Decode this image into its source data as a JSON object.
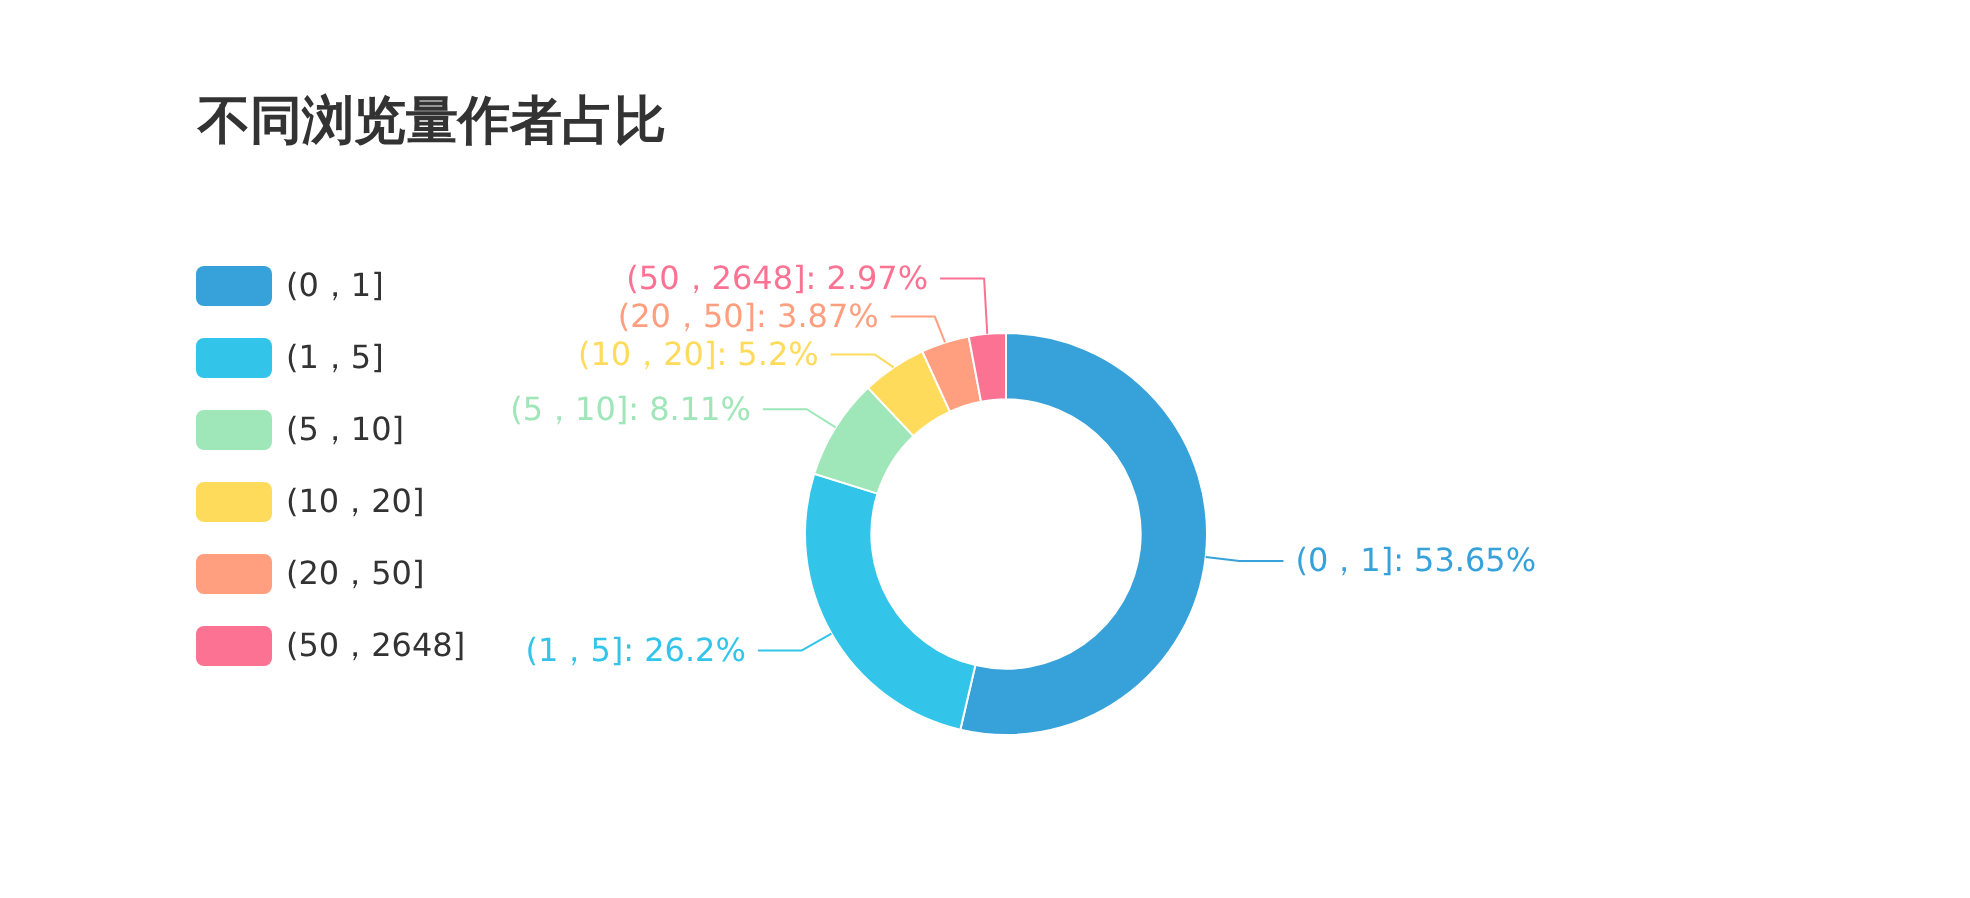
{
  "chart_data": {
    "type": "donut",
    "title": "不同浏览量作者占比",
    "categories": [
      "(0，1]",
      "(1，5]",
      "(5，10]",
      "(10，20]",
      "(20，50]",
      "(50，2648]"
    ],
    "values": [
      53.65,
      26.2,
      8.11,
      5.2,
      3.87,
      2.97
    ],
    "colors": [
      "#37a2da",
      "#32c5e9",
      "#9fe6b8",
      "#ffdb5c",
      "#ff9f7f",
      "#fb7293"
    ],
    "value_labels": [
      "(0，1]: 53.65%",
      "(1，5]: 26.2%",
      "(5，10]: 8.11%",
      "(10，20]: 5.2%",
      "(20，50]: 3.87%",
      "(50，2648]: 2.97%"
    ],
    "legend": "left"
  }
}
